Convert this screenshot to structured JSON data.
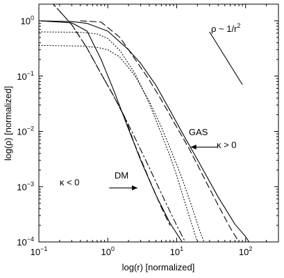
{
  "chart_data": {
    "type": "line",
    "xlabel": "log(r) [normalized]",
    "ylabel": "log(ρ) [normalized]",
    "xscale": "log",
    "yscale": "log",
    "xlim": [
      0.1,
      300
    ],
    "ylim": [
      0.0001,
      2
    ],
    "xticks": [
      {
        "value": 0.1,
        "base": "10",
        "exp": "−1"
      },
      {
        "value": 1,
        "base": "10",
        "exp": "0"
      },
      {
        "value": 10,
        "base": "10",
        "exp": "1"
      },
      {
        "value": 100,
        "base": "10",
        "exp": "2"
      }
    ],
    "yticks": [
      {
        "value": 0.0001,
        "base": "10",
        "exp": "−4"
      },
      {
        "value": 0.001,
        "base": "10",
        "exp": "−3"
      },
      {
        "value": 0.01,
        "base": "10",
        "exp": "−2"
      },
      {
        "value": 0.1,
        "base": "10",
        "exp": "−1"
      },
      {
        "value": 1,
        "base": "10",
        "exp": "0"
      }
    ],
    "grid": false,
    "series": [
      {
        "style": "solid",
        "group": "gas",
        "x": [
          0.1,
          0.3,
          0.5,
          1.0,
          2.0,
          3.0,
          5.0,
          8.0,
          12.0,
          20.0,
          40.0,
          70.0,
          100.0,
          140.0
        ],
        "y": [
          1.0,
          0.97,
          0.9,
          0.65,
          0.3,
          0.17,
          0.068,
          0.024,
          0.0095,
          0.0031,
          0.00065,
          0.00021,
          0.000125,
          6.5e-05
        ]
      },
      {
        "style": "dashed",
        "group": "gas",
        "x": [
          0.4,
          0.8,
          1.5,
          2.5,
          4.0,
          6.0,
          10.0,
          15.0,
          20.0,
          30.0,
          45.0,
          60.0,
          80.0,
          100.0
        ],
        "y": [
          1.0,
          0.95,
          0.5,
          0.2,
          0.085,
          0.037,
          0.012,
          0.005,
          0.0025,
          0.00092,
          0.00035,
          0.00018,
          0.0001,
          6e-05
        ]
      },
      {
        "style": "dotted",
        "group": "gas",
        "x": [
          0.1,
          0.4,
          0.7,
          1.0,
          1.5,
          2.5,
          4.0,
          6.0,
          8.0,
          10.0,
          13.0,
          16.0,
          20.0
        ],
        "y": [
          0.63,
          0.62,
          0.58,
          0.48,
          0.29,
          0.11,
          0.032,
          0.009,
          0.0036,
          0.0016,
          0.00055,
          0.00024,
          0.0001
        ]
      },
      {
        "style": "dotted",
        "group": "dm",
        "x": [
          0.1,
          0.4,
          0.7,
          1.0,
          1.5,
          2.5,
          4.0,
          6.0,
          9.0,
          12.0,
          16.0,
          22.0,
          25.0
        ],
        "y": [
          0.36,
          0.35,
          0.33,
          0.3,
          0.22,
          0.1,
          0.035,
          0.012,
          0.0035,
          0.0014,
          0.0005,
          0.00015,
          0.0001
        ]
      },
      {
        "style": "solid",
        "group": "dm",
        "x": [
          0.1,
          0.3,
          0.5,
          0.8,
          1.2,
          2.0,
          3.0,
          5.0,
          8.0,
          12.0
        ],
        "y": [
          1.0,
          0.92,
          0.65,
          0.2,
          0.058,
          0.011,
          0.003,
          0.0007,
          0.00022,
          0.0001
        ]
      },
      {
        "style": "dashdot",
        "group": "dm",
        "x": [
          0.15,
          0.2,
          0.3,
          0.5,
          0.8,
          1.2,
          1.6,
          2.5,
          4.0,
          6.0,
          10.0,
          15.0
        ],
        "y": [
          2.2,
          1.5,
          0.85,
          0.32,
          0.11,
          0.045,
          0.023,
          0.0075,
          0.0022,
          0.00075,
          0.0002,
          7.5e-05
        ]
      },
      {
        "style": "dashed",
        "group": "dm",
        "x": [
          0.15,
          0.2,
          0.3,
          0.5,
          0.8,
          1.2,
          1.8,
          2.5,
          4.0,
          6.0,
          8.0
        ],
        "y": [
          2.2,
          1.5,
          0.85,
          0.32,
          0.11,
          0.045,
          0.017,
          0.0055,
          0.00135,
          0.00042,
          0.0002
        ]
      }
    ],
    "slope_guide": {
      "label_base": "ρ ~ 1/r",
      "label_exp": "2",
      "x": [
        30,
        90
      ],
      "y": [
        0.63,
        0.07
      ]
    },
    "annotations": [
      {
        "id": "gas",
        "text": "GAS",
        "tx": 15,
        "ty": 0.0085
      },
      {
        "id": "dm",
        "text": "DM",
        "tx": 1.25,
        "ty": 0.0014
      },
      {
        "id": "kappa-pos",
        "text": "κ > 0",
        "tx": 38,
        "ty": 0.005
      },
      {
        "id": "kappa-neg",
        "text": "κ < 0",
        "tx": 0.2,
        "ty": 0.00105
      }
    ],
    "arrows": [
      {
        "id": "gas-arrow",
        "from": [
          40,
          0.0052
        ],
        "to": [
          16,
          0.0052
        ]
      },
      {
        "id": "dm-arrow",
        "from": [
          1.05,
          0.00095
        ],
        "to": [
          2.7,
          0.00095
        ]
      }
    ]
  }
}
